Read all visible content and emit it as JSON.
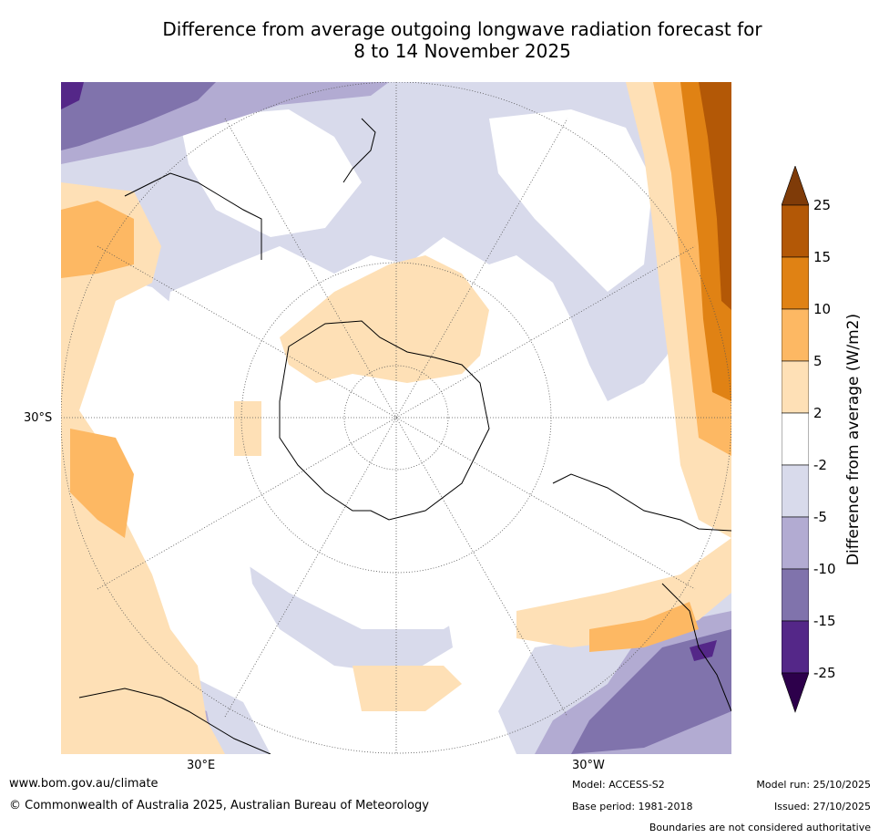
{
  "title_line1": "Difference from average outgoing longwave radiation forecast for",
  "title_line2": "8 to 14 November 2025",
  "axis_labels": {
    "lat": "30°S",
    "lon_east": "30°E",
    "lon_west": "30°W"
  },
  "colorbar": {
    "title": "Difference from average (W/m2)",
    "ticks": [
      "25",
      "15",
      "10",
      "5",
      "2",
      "-2",
      "-5",
      "-10",
      "-15",
      "-25"
    ],
    "colors": {
      "over": "#7f3b08",
      "b15_25": "#b35806",
      "b10_15": "#e08214",
      "b5_10": "#fdb863",
      "b2_5": "#fee0b6",
      "neutral": "#ffffff",
      "bm2_m5": "#d8daeb",
      "bm5_m10": "#b2abd2",
      "bm10_m15": "#8073ac",
      "bm15_m25": "#542788",
      "under": "#2d004b"
    }
  },
  "footer": {
    "url": "www.bom.gov.au/climate",
    "copyright": "© Commonwealth of Australia 2025, Australian Bureau of Meteorology",
    "model": "Model: ACCESS-S2",
    "base_period": "Base period: 1981-2018",
    "model_run": "Model run: 25/10/2025",
    "issued": "Issued: 27/10/2025",
    "disclaimer": "Boundaries are not considered authoritative"
  }
}
